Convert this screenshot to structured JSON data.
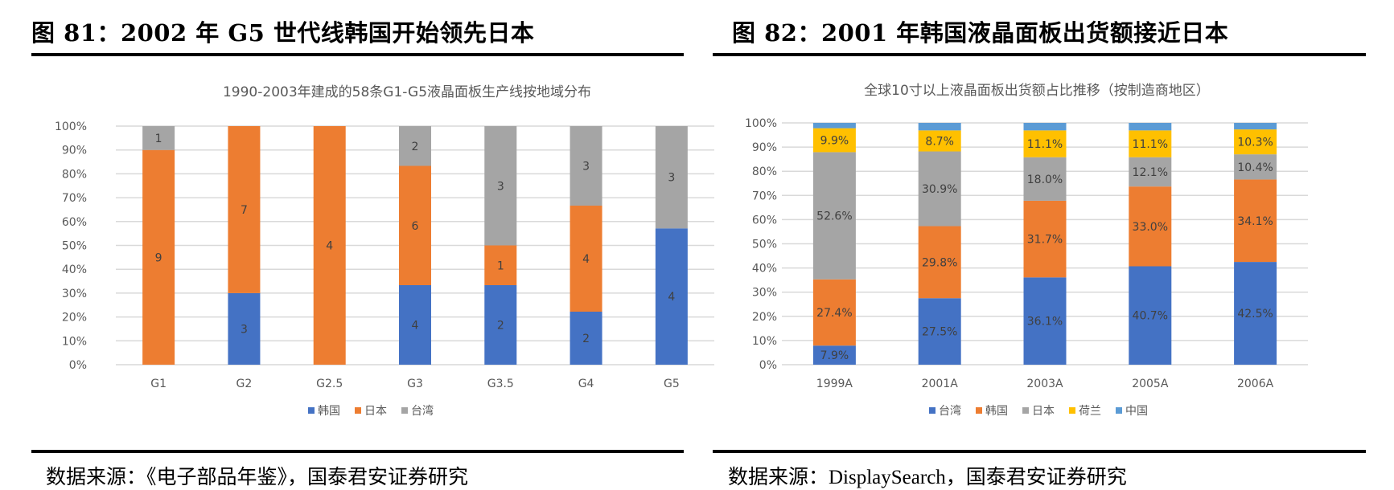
{
  "figures": [
    {
      "title": "图 81：2002 年 G5 世代线韩国开始领先日本",
      "source": "数据来源：《电子部品年鉴》，国泰君安证券研究"
    },
    {
      "title": "图 82：2001 年韩国液晶面板出货额接近日本",
      "source": "数据来源：DisplaySearch，国泰君安证券研究"
    }
  ],
  "chart_data": [
    {
      "type": "bar",
      "stacked": "percent",
      "title": "1990-2003年建成的58条G1-G5液晶面板生产线按地域分布",
      "categories": [
        "G1",
        "G2",
        "G2.5",
        "G3",
        "G3.5",
        "G4",
        "G5"
      ],
      "series": [
        {
          "name": "韩国",
          "color": "#4472C4",
          "values": [
            0,
            3,
            0,
            4,
            2,
            2,
            4
          ],
          "labels": [
            "",
            "3",
            "",
            "4",
            "2",
            "2",
            "4"
          ]
        },
        {
          "name": "日本",
          "color": "#ED7D31",
          "values": [
            9,
            7,
            4,
            6,
            1,
            4,
            0
          ],
          "labels": [
            "9",
            "7",
            "4",
            "6",
            "1",
            "4",
            ""
          ]
        },
        {
          "name": "台湾",
          "color": "#A5A5A5",
          "values": [
            1,
            0,
            0,
            2,
            3,
            3,
            3
          ],
          "labels": [
            "1",
            "",
            "",
            "2",
            "3",
            "3",
            "3"
          ]
        }
      ],
      "yticks": [
        "0%",
        "10%",
        "20%",
        "30%",
        "40%",
        "50%",
        "60%",
        "70%",
        "80%",
        "90%",
        "100%"
      ],
      "ylim": [
        0,
        100
      ],
      "grid": true,
      "legend": "bottom"
    },
    {
      "type": "bar",
      "stacked": "percent",
      "title": "全球10寸以上液晶面板出货额占比推移（按制造商地区）",
      "categories": [
        "1999A",
        "2001A",
        "2003A",
        "2005A",
        "2006A"
      ],
      "series": [
        {
          "name": "台湾",
          "color": "#4472C4",
          "values": [
            7.9,
            27.5,
            36.1,
            40.7,
            42.5
          ],
          "labels": [
            "7.9%",
            "27.5%",
            "36.1%",
            "40.7%",
            "42.5%"
          ]
        },
        {
          "name": "韩国",
          "color": "#ED7D31",
          "values": [
            27.4,
            29.8,
            31.7,
            33.0,
            34.1
          ],
          "labels": [
            "27.4%",
            "29.8%",
            "31.7%",
            "33.0%",
            "34.1%"
          ]
        },
        {
          "name": "日本",
          "color": "#A5A5A5",
          "values": [
            52.6,
            30.9,
            18.0,
            12.1,
            10.4
          ],
          "labels": [
            "52.6%",
            "30.9%",
            "18.0%",
            "12.1%",
            "10.4%"
          ]
        },
        {
          "name": "荷兰",
          "color": "#FFC000",
          "values": [
            9.9,
            8.7,
            11.1,
            11.1,
            10.3
          ],
          "labels": [
            "9.9%",
            "8.7%",
            "11.1%",
            "11.1%",
            "10.3%"
          ]
        },
        {
          "name": "中国",
          "color": "#5B9BD5",
          "values": [
            2.2,
            3.1,
            3.1,
            3.1,
            2.7
          ],
          "labels": [
            "",
            "",
            "",
            "",
            ""
          ]
        }
      ],
      "yticks": [
        "0%",
        "10%",
        "20%",
        "30%",
        "40%",
        "50%",
        "60%",
        "70%",
        "80%",
        "90%",
        "100%"
      ],
      "ylim": [
        0,
        100
      ],
      "grid": true,
      "legend": "bottom"
    }
  ]
}
